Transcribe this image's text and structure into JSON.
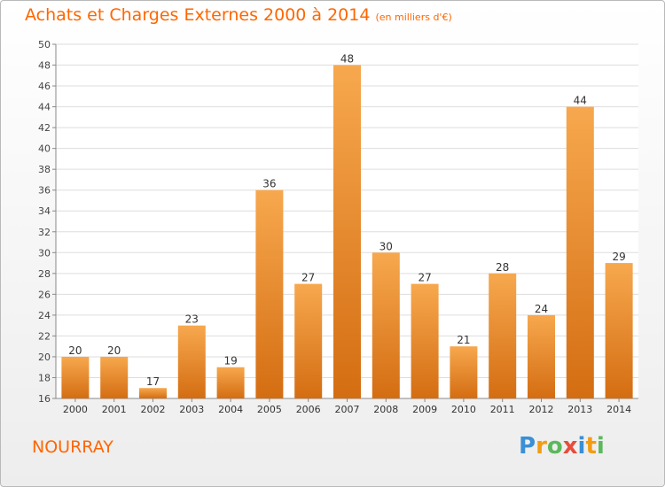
{
  "title": "Achats et Charges Externes 2000 à 2014",
  "subtitle": "(en milliers d'€)",
  "commune": "NOURRAY",
  "logo": {
    "letters": [
      "P",
      "r",
      "o",
      "x",
      "i",
      "t",
      "i"
    ],
    "colors": [
      "#3a8fd6",
      "#f39c12",
      "#5cb85c",
      "#e74c3c",
      "#3a8fd6",
      "#f39c12",
      "#5cb85c"
    ]
  },
  "colors": {
    "accent": "#ff6600",
    "bar_light": "#f7a84e",
    "bar_dark": "#d46d12"
  },
  "chart_data": {
    "type": "bar",
    "categories": [
      "2000",
      "2001",
      "2002",
      "2003",
      "2004",
      "2005",
      "2006",
      "2007",
      "2008",
      "2009",
      "2010",
      "2011",
      "2012",
      "2013",
      "2014"
    ],
    "values": [
      20,
      20,
      17,
      23,
      19,
      36,
      27,
      48,
      30,
      27,
      21,
      28,
      24,
      44,
      29
    ],
    "ylim": [
      16,
      50
    ],
    "yticks": [
      16,
      18,
      20,
      22,
      24,
      26,
      28,
      30,
      32,
      34,
      36,
      38,
      40,
      42,
      44,
      46,
      48,
      50
    ],
    "grid": true,
    "data_labels": true
  }
}
